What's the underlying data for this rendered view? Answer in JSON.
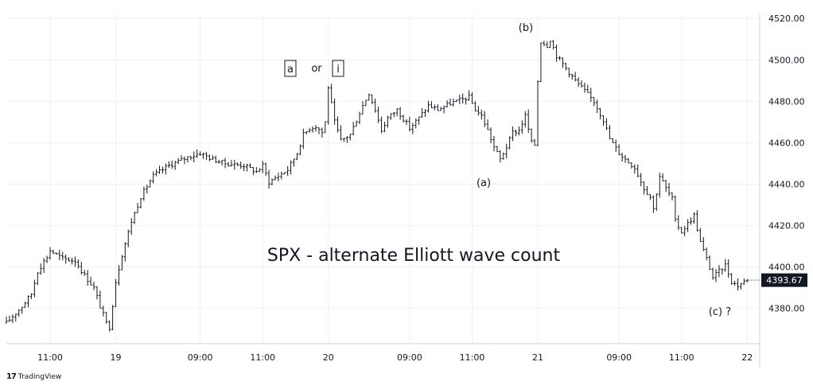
{
  "brand": {
    "logo": "17",
    "name": "TradingView"
  },
  "chart_data": {
    "type": "ohlc",
    "title": "SPX - alternate Elliott wave count",
    "ylim": [
      4363,
      4522
    ],
    "y_ticks": [
      4380,
      4400,
      4420,
      4440,
      4460,
      4480,
      4500,
      4520
    ],
    "y_tick_labels": [
      "4380.00",
      "4400.00",
      "4420.00",
      "4440.00",
      "4460.00",
      "4480.00",
      "4500.00",
      "4520.00"
    ],
    "x_ticks": [
      {
        "label": "11:00",
        "bar": 14
      },
      {
        "label": "19",
        "bar": 35
      },
      {
        "label": "09:00",
        "bar": 62
      },
      {
        "label": "11:00",
        "bar": 82
      },
      {
        "label": "20",
        "bar": 103
      },
      {
        "label": "09:00",
        "bar": 129
      },
      {
        "label": "11:00",
        "bar": 149
      },
      {
        "label": "21",
        "bar": 170
      },
      {
        "label": "09:00",
        "bar": 196
      },
      {
        "label": "11:00",
        "bar": 216
      },
      {
        "label": "22",
        "bar": 237
      }
    ],
    "bar_count": 237,
    "waypoints": [
      [
        0,
        4373
      ],
      [
        5,
        4381
      ],
      [
        8,
        4387
      ],
      [
        10,
        4398
      ],
      [
        13,
        4405
      ],
      [
        14,
        4408
      ],
      [
        18,
        4404
      ],
      [
        22,
        4403
      ],
      [
        25,
        4396
      ],
      [
        28,
        4390
      ],
      [
        30,
        4381
      ],
      [
        32,
        4373
      ],
      [
        33,
        4371
      ],
      [
        35,
        4393
      ],
      [
        37,
        4406
      ],
      [
        40,
        4422
      ],
      [
        43,
        4434
      ],
      [
        47,
        4444
      ],
      [
        52,
        4449
      ],
      [
        58,
        4453
      ],
      [
        62,
        4455
      ],
      [
        66,
        4452
      ],
      [
        70,
        4450
      ],
      [
        76,
        4449
      ],
      [
        80,
        4446
      ],
      [
        82,
        4449
      ],
      [
        84,
        4441
      ],
      [
        86,
        4443
      ],
      [
        90,
        4447
      ],
      [
        93,
        4455
      ],
      [
        95,
        4464
      ],
      [
        97,
        4467
      ],
      [
        99,
        4468
      ],
      [
        101,
        4465
      ],
      [
        102,
        4470
      ],
      [
        103,
        4487
      ],
      [
        105,
        4470
      ],
      [
        107,
        4461
      ],
      [
        110,
        4464
      ],
      [
        112,
        4471
      ],
      [
        114,
        4478
      ],
      [
        116,
        4484
      ],
      [
        118,
        4476
      ],
      [
        120,
        4466
      ],
      [
        122,
        4472
      ],
      [
        125,
        4476
      ],
      [
        129,
        4467
      ],
      [
        132,
        4472
      ],
      [
        135,
        4478
      ],
      [
        138,
        4476
      ],
      [
        142,
        4479
      ],
      [
        146,
        4481
      ],
      [
        148,
        4482
      ],
      [
        150,
        4476
      ],
      [
        152,
        4473
      ],
      [
        154,
        4466
      ],
      [
        156,
        4458
      ],
      [
        158,
        4452
      ],
      [
        160,
        4458
      ],
      [
        162,
        4465
      ],
      [
        164,
        4466
      ],
      [
        166,
        4473
      ],
      [
        168,
        4460
      ],
      [
        169,
        4459
      ],
      [
        170,
        4490
      ],
      [
        171,
        4509
      ],
      [
        173,
        4507
      ],
      [
        174,
        4510
      ],
      [
        176,
        4502
      ],
      [
        179,
        4496
      ],
      [
        182,
        4490
      ],
      [
        185,
        4485
      ],
      [
        188,
        4480
      ],
      [
        191,
        4471
      ],
      [
        193,
        4462
      ],
      [
        196,
        4455
      ],
      [
        198,
        4452
      ],
      [
        201,
        4448
      ],
      [
        204,
        4438
      ],
      [
        206,
        4434
      ],
      [
        207,
        4428
      ],
      [
        209,
        4444
      ],
      [
        211,
        4438
      ],
      [
        213,
        4433
      ],
      [
        214,
        4422
      ],
      [
        216,
        4417
      ],
      [
        218,
        4421
      ],
      [
        220,
        4425
      ],
      [
        222,
        4412
      ],
      [
        224,
        4404
      ],
      [
        226,
        4395
      ],
      [
        228,
        4398
      ],
      [
        230,
        4401
      ],
      [
        232,
        4393
      ],
      [
        234,
        4391
      ],
      [
        237,
        4394
      ]
    ],
    "last_price": 4393.67,
    "last_price_label": "4393.67",
    "annotations": {
      "a_box": "a",
      "or_text": "or",
      "i_box": "i",
      "b_label": "(b)",
      "a_label": "(a)",
      "c_label": "(c) ?"
    }
  }
}
